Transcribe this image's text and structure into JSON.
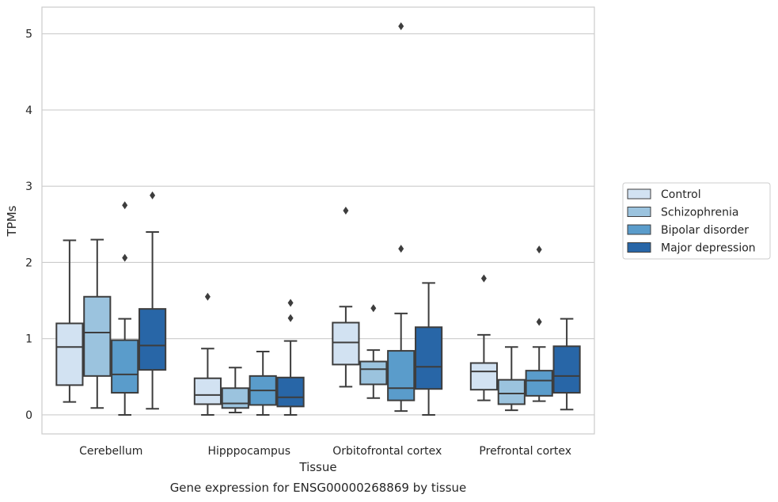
{
  "chart_data": {
    "type": "boxplot",
    "title": "Gene expression for ENSG00000268869 by tissue",
    "xlabel": "Tissue",
    "ylabel": "TPMs",
    "ylim": [
      -0.25,
      5.35
    ],
    "yticks": [
      0,
      1,
      2,
      3,
      4,
      5
    ],
    "grid": true,
    "legend_position": "right",
    "categories": [
      "Cerebellum",
      "Hipppocampus",
      "Orbitofrontal cortex",
      "Prefrontal cortex"
    ],
    "series": [
      {
        "name": "Control",
        "color": "#d2e2f2",
        "boxes": [
          {
            "whislo": 0.17,
            "q1": 0.39,
            "med": 0.89,
            "q3": 1.2,
            "whishi": 2.29,
            "fliers": []
          },
          {
            "whislo": 0.0,
            "q1": 0.14,
            "med": 0.26,
            "q3": 0.48,
            "whishi": 0.87,
            "fliers": [
              1.55
            ]
          },
          {
            "whislo": 0.37,
            "q1": 0.66,
            "med": 0.95,
            "q3": 1.21,
            "whishi": 1.42,
            "fliers": [
              2.68
            ]
          },
          {
            "whislo": 0.19,
            "q1": 0.33,
            "med": 0.57,
            "q3": 0.68,
            "whishi": 1.05,
            "fliers": [
              1.79
            ]
          }
        ]
      },
      {
        "name": "Schizophrenia",
        "color": "#9bc3de",
        "boxes": [
          {
            "whislo": 0.09,
            "q1": 0.51,
            "med": 1.08,
            "q3": 1.55,
            "whishi": 2.3,
            "fliers": []
          },
          {
            "whislo": 0.03,
            "q1": 0.09,
            "med": 0.15,
            "q3": 0.35,
            "whishi": 0.62,
            "fliers": []
          },
          {
            "whislo": 0.22,
            "q1": 0.4,
            "med": 0.6,
            "q3": 0.7,
            "whishi": 0.85,
            "fliers": [
              1.4
            ]
          },
          {
            "whislo": 0.06,
            "q1": 0.14,
            "med": 0.28,
            "q3": 0.46,
            "whishi": 0.89,
            "fliers": []
          }
        ]
      },
      {
        "name": "Bipolar disorder",
        "color": "#5a9ccb",
        "boxes": [
          {
            "whislo": 0.0,
            "q1": 0.29,
            "med": 0.53,
            "q3": 0.98,
            "whishi": 1.26,
            "fliers": [
              2.06,
              2.75
            ]
          },
          {
            "whislo": 0.0,
            "q1": 0.13,
            "med": 0.32,
            "q3": 0.51,
            "whishi": 0.83,
            "fliers": []
          },
          {
            "whislo": 0.05,
            "q1": 0.19,
            "med": 0.35,
            "q3": 0.84,
            "whishi": 1.33,
            "fliers": [
              2.18,
              5.1
            ]
          },
          {
            "whislo": 0.18,
            "q1": 0.25,
            "med": 0.45,
            "q3": 0.58,
            "whishi": 0.89,
            "fliers": [
              1.22,
              2.17
            ]
          }
        ]
      },
      {
        "name": "Major depression",
        "color": "#2866a7",
        "boxes": [
          {
            "whislo": 0.08,
            "q1": 0.59,
            "med": 0.91,
            "q3": 1.39,
            "whishi": 2.4,
            "fliers": [
              2.88
            ]
          },
          {
            "whislo": 0.0,
            "q1": 0.11,
            "med": 0.23,
            "q3": 0.49,
            "whishi": 0.97,
            "fliers": [
              1.27,
              1.47
            ]
          },
          {
            "whislo": 0.0,
            "q1": 0.34,
            "med": 0.63,
            "q3": 1.15,
            "whishi": 1.73,
            "fliers": []
          },
          {
            "whislo": 0.07,
            "q1": 0.29,
            "med": 0.51,
            "q3": 0.9,
            "whishi": 1.26,
            "fliers": []
          }
        ]
      }
    ]
  }
}
